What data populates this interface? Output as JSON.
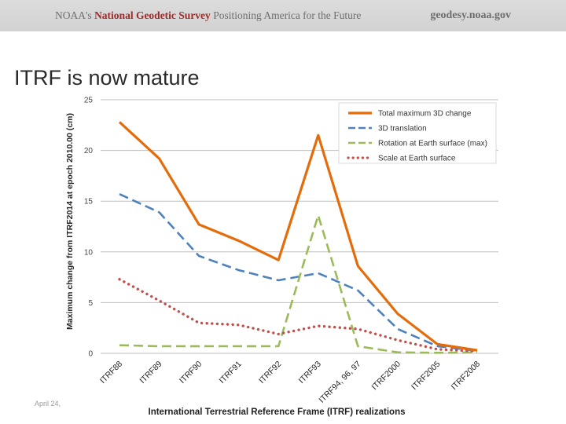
{
  "banner": {
    "org": "NOAA's",
    "agency": "National Geodetic Survey",
    "tagline": "Positioning America for the Future",
    "site": "geodesy.noaa.gov"
  },
  "slide": {
    "title": "ITRF is now mature",
    "footer_date": "April 24,"
  },
  "chart_data": {
    "type": "line",
    "categories": [
      "ITRF88",
      "ITRF89",
      "ITRF90",
      "ITRF91",
      "ITRF92",
      "ITRF93",
      "ITRF94, 96, 97",
      "ITRF2000",
      "ITRF2005",
      "ITRF2008"
    ],
    "series": [
      {
        "name": "Total maximum 3D change",
        "color": "#e46c0a",
        "style": "solid",
        "values": [
          22.8,
          19.2,
          12.7,
          11.1,
          9.2,
          21.5,
          8.6,
          3.9,
          0.9,
          0.3
        ]
      },
      {
        "name": "3D translation",
        "color": "#4f81bd",
        "style": "dash",
        "values": [
          15.7,
          13.9,
          9.6,
          8.2,
          7.2,
          7.9,
          6.2,
          2.4,
          0.7,
          0.25
        ]
      },
      {
        "name": "Rotation at Earth surface (max)",
        "color": "#9bbb59",
        "style": "dash",
        "values": [
          0.8,
          0.7,
          0.7,
          0.7,
          0.7,
          13.6,
          0.7,
          0.1,
          0.05,
          0.1
        ]
      },
      {
        "name": "Scale at Earth surface",
        "color": "#c0504d",
        "style": "dot",
        "values": [
          7.3,
          5.2,
          3.0,
          2.8,
          1.9,
          2.7,
          2.4,
          1.3,
          0.4,
          0.2
        ]
      }
    ],
    "yticks": [
      0,
      5,
      10,
      15,
      20,
      25
    ],
    "ylim": [
      0,
      25
    ],
    "xlabel": "International  Terrestrial  Reference Frame (ITRF) realizations",
    "ylabel": "Maximum change from ITRF2014 at epoch 2010.00 (cm)",
    "grid": true,
    "legend": "top-right"
  }
}
